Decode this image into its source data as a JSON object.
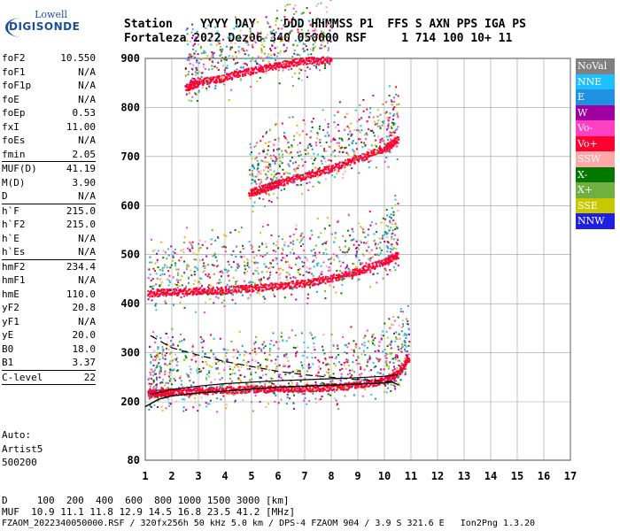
{
  "logo": {
    "line1": "Lowell",
    "line2": "DIGISONDE"
  },
  "header": {
    "labels": "Station    YYYY DAY    DDD HHMMSS P1  FFS S AXN PPS IGA PS",
    "values": "Fortaleza 2022 Dez06 340 050000 RSF     1 714 100 10+ 11"
  },
  "params": [
    {
      "name": "foF2",
      "value": "10.550"
    },
    {
      "name": "foF1",
      "value": "N/A"
    },
    {
      "name": "foF1p",
      "value": "N/A"
    },
    {
      "name": "foE",
      "value": "N/A"
    },
    {
      "name": "foEp",
      "value": "0.53"
    },
    {
      "name": "fxI",
      "value": "11.00"
    },
    {
      "name": "foEs",
      "value": "N/A"
    },
    {
      "name": "fmin",
      "value": "2.05",
      "sep": true
    },
    {
      "name": "MUF(D)",
      "value": "41.19"
    },
    {
      "name": "M(D)",
      "value": "3.90"
    },
    {
      "name": "D",
      "value": "N/A",
      "sep": true
    },
    {
      "name": "h`F",
      "value": "215.0"
    },
    {
      "name": "h`F2",
      "value": "215.0"
    },
    {
      "name": "h`E",
      "value": "N/A"
    },
    {
      "name": "h`Es",
      "value": "N/A",
      "sep": true
    },
    {
      "name": "hmF2",
      "value": "234.4"
    },
    {
      "name": "hmF1",
      "value": "N/A"
    },
    {
      "name": "hmE",
      "value": "110.0"
    },
    {
      "name": "yF2",
      "value": "20.8"
    },
    {
      "name": "yF1",
      "value": "N/A"
    },
    {
      "name": "yE",
      "value": "20.0"
    },
    {
      "name": "B0",
      "value": "18.0"
    },
    {
      "name": "B1",
      "value": "3.37",
      "sep": true
    },
    {
      "name": "C-level",
      "value": "22",
      "sep": true
    }
  ],
  "auto": [
    "Auto:",
    "Artist5",
    "500200"
  ],
  "legend": [
    {
      "label": "NoVal",
      "color": "#808080"
    },
    {
      "label": "NNE",
      "color": "#20c0ff"
    },
    {
      "label": "E",
      "color": "#2090e0"
    },
    {
      "label": "W",
      "color": "#a000a0"
    },
    {
      "label": "Vo-",
      "color": "#ff40c0"
    },
    {
      "label": "Vo+",
      "color": "#ff0030"
    },
    {
      "label": "SSW",
      "color": "#ffa8a8"
    },
    {
      "label": "X-",
      "color": "#007800"
    },
    {
      "label": "X+",
      "color": "#70b040"
    },
    {
      "label": "SSE",
      "color": "#c8c800"
    },
    {
      "label": "NNW",
      "color": "#2020e0"
    }
  ],
  "footer": {
    "line1": "D     100  200  400  600  800 1000 1500 3000 [km]",
    "line2": "MUF  10.9 11.1 11.8 12.9 14.5 16.8 23.5 41.2 [MHz]",
    "line3": "FZAOM_2022340050000.RSF / 320fx256h 50 kHz 5.0 km / DPS-4 FZAOM 904 / 3.9 S 321.6 E   Ion2Png 1.3.20"
  },
  "chart_data": {
    "type": "scatter",
    "xlim": [
      1,
      17
    ],
    "ylim": [
      80,
      900
    ],
    "x_ticks": [
      1,
      2,
      3,
      4,
      5,
      6,
      7,
      8,
      9,
      10,
      11,
      12,
      13,
      14,
      15,
      16,
      17
    ],
    "y_ticks": [
      80,
      200,
      300,
      400,
      500,
      600,
      700,
      800,
      900
    ],
    "grid": true,
    "legend_position": "right",
    "traces": [
      {
        "name": "F2 1st hop",
        "x": [
          1.1,
          1.5,
          2.0,
          3.0,
          4.0,
          5.0,
          6.0,
          7.0,
          8.0,
          9.0,
          10.0,
          10.5,
          10.9
        ],
        "y": [
          220,
          222,
          224,
          226,
          228,
          230,
          230,
          232,
          234,
          238,
          248,
          262,
          295
        ]
      },
      {
        "name": "F2 2nd hop",
        "x": [
          1.1,
          2.0,
          3.0,
          4.0,
          5.0,
          6.0,
          7.0,
          8.0,
          9.0,
          10.0,
          10.5
        ],
        "y": [
          425,
          428,
          430,
          432,
          436,
          440,
          446,
          456,
          470,
          490,
          505
        ]
      },
      {
        "name": "F2 3rd hop",
        "x": [
          4.9,
          5.5,
          6.0,
          7.0,
          8.0,
          9.0,
          10.0,
          10.5
        ],
        "y": [
          630,
          640,
          650,
          665,
          680,
          700,
          720,
          740
        ]
      },
      {
        "name": "F2 4th hop",
        "x": [
          2.5,
          3.0,
          4.0,
          5.0,
          6.0,
          7.0,
          8.0
        ],
        "y": [
          845,
          855,
          865,
          880,
          890,
          900,
          900
        ]
      }
    ],
    "profile_curve": {
      "x": [
        1.0,
        1.5,
        2.0,
        3.0,
        4.0,
        5.0,
        6.0,
        7.0,
        8.0,
        9.0,
        9.8,
        10.3,
        10.55
      ],
      "y": [
        190,
        205,
        212,
        218,
        222,
        226,
        230,
        232,
        234,
        236,
        238,
        240,
        234
      ]
    },
    "dashed_curve": {
      "x": [
        1.2,
        2.0,
        3.0,
        4.0,
        5.0,
        6.0,
        7.0,
        8.0,
        9.0,
        10.0,
        10.5
      ],
      "y": [
        335,
        310,
        295,
        282,
        272,
        262,
        255,
        250,
        245,
        242,
        240
      ]
    },
    "bottom_curve": {
      "x": [
        1.2,
        2.0,
        3.0,
        4.0,
        5.0,
        6.0,
        7.0,
        8.0,
        9.0,
        10.0,
        10.5
      ],
      "y": [
        215,
        225,
        232,
        237,
        240,
        243,
        245,
        247,
        249,
        252,
        255
      ]
    }
  }
}
